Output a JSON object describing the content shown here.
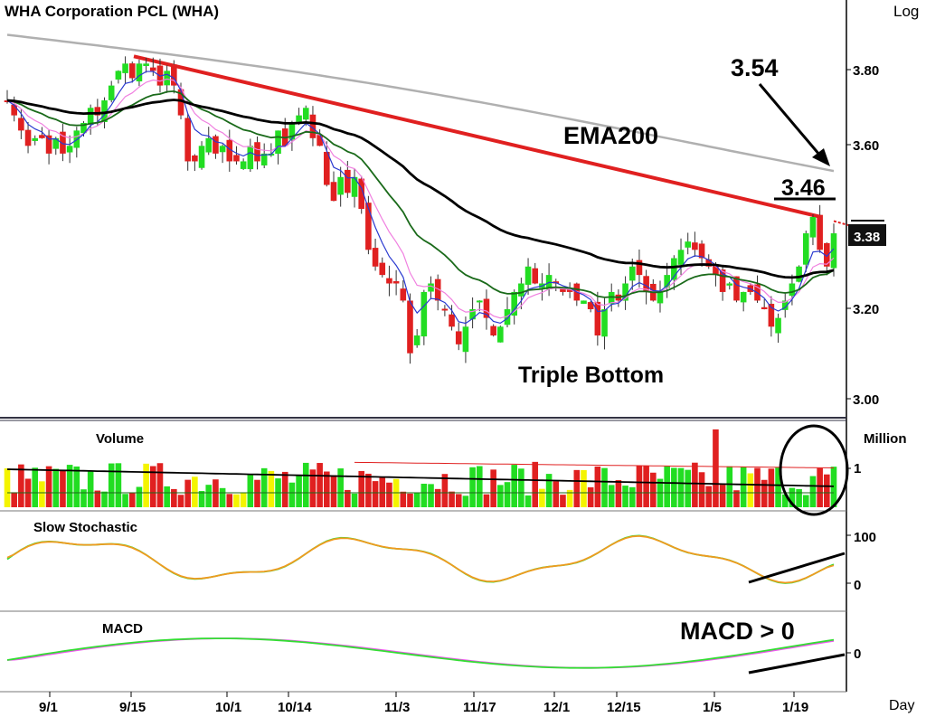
{
  "header": {
    "title": "WHA  Corporation  PCL  (WHA)",
    "scale_label": "Log"
  },
  "price_panel": {
    "y_ticks": [
      "3.80",
      "3.60",
      "3.20",
      "3.00"
    ],
    "last_price": "3.38",
    "annotations": {
      "ema200": "EMA200",
      "target_354": "3.54",
      "level_346": "3.46",
      "pattern": "Triple Bottom"
    }
  },
  "volume_panel": {
    "title": "Volume",
    "unit": "Million",
    "tick": "1"
  },
  "stoch_panel": {
    "title": "Slow  Stochastic",
    "ticks": [
      "100",
      "0"
    ]
  },
  "macd_panel": {
    "title": "MACD",
    "tick": "0",
    "annotation": "MACD > 0"
  },
  "x_axis": {
    "labels": [
      "9/1",
      "9/15",
      "10/1",
      "10/14",
      "11/3",
      "11/17",
      "12/1",
      "12/15",
      "1/5",
      "1/19"
    ],
    "unit": "Day"
  },
  "colors": {
    "up": "#22dd22",
    "down": "#e02020",
    "volume_flat": "#f4f400",
    "trendline": "#e02020",
    "ema200": "#b0b0b0",
    "ma_long": "#000000",
    "ma_mid": "#1a6a1a",
    "ma_fast": "#2a3ad0",
    "ma_pink": "#f080e0",
    "stoch_k": "#33dd33",
    "stoch_d": "#f09a20",
    "macd": "#33dd33",
    "macd_signal": "#ee55ee"
  },
  "chart_data": [
    {
      "type": "candlestick",
      "title": "WHA  Corporation  PCL  (WHA)",
      "scale": "log",
      "ylim": [
        2.95,
        3.95
      ],
      "y_ticks": [
        3.8,
        3.6,
        3.2,
        3.0
      ],
      "x_labels": [
        "9/1",
        "9/15",
        "10/1",
        "10/14",
        "11/3",
        "11/17",
        "12/1",
        "12/15",
        "1/5",
        "1/19"
      ],
      "closes": [
        3.72,
        3.68,
        3.64,
        3.6,
        3.62,
        3.62,
        3.58,
        3.62,
        3.58,
        3.6,
        3.64,
        3.66,
        3.7,
        3.68,
        3.72,
        3.76,
        3.8,
        3.82,
        3.78,
        3.82,
        3.82,
        3.8,
        3.76,
        3.8,
        3.76,
        3.68,
        3.56,
        3.56,
        3.6,
        3.62,
        3.58,
        3.6,
        3.56,
        3.56,
        3.56,
        3.6,
        3.56,
        3.58,
        3.58,
        3.64,
        3.6,
        3.66,
        3.68,
        3.7,
        3.62,
        3.6,
        3.5,
        3.46,
        3.52,
        3.48,
        3.52,
        3.44,
        3.34,
        3.3,
        3.28,
        3.26,
        3.26,
        3.22,
        3.1,
        3.14,
        3.24,
        3.26,
        3.22,
        3.2,
        3.16,
        3.12,
        3.16,
        3.2,
        3.22,
        3.18,
        3.14,
        3.16,
        3.2,
        3.24,
        3.26,
        3.3,
        3.26,
        3.26,
        3.28,
        3.26,
        3.24,
        3.24,
        3.22,
        3.22,
        3.2,
        3.14,
        3.2,
        3.24,
        3.22,
        3.26,
        3.3,
        3.28,
        3.24,
        3.22,
        3.24,
        3.28,
        3.32,
        3.34,
        3.36,
        3.34,
        3.32,
        3.3,
        3.28,
        3.24,
        3.26,
        3.22,
        3.24,
        3.24,
        3.22,
        3.2,
        3.16,
        3.18,
        3.22,
        3.26,
        3.3,
        3.38,
        3.42,
        3.34,
        3.3,
        3.38
      ],
      "annotations": [
        "EMA200",
        "3.54",
        "3.46",
        "Triple Bottom"
      ],
      "last_price": 3.38
    },
    {
      "type": "bar",
      "title": "Volume",
      "unit": "Million",
      "y_ticks": [
        1
      ]
    },
    {
      "type": "line",
      "title": "Slow  Stochastic",
      "y_ticks": [
        100,
        0
      ]
    },
    {
      "type": "line",
      "title": "MACD",
      "y_ticks": [
        0
      ],
      "annotations": [
        "MACD > 0"
      ]
    }
  ]
}
